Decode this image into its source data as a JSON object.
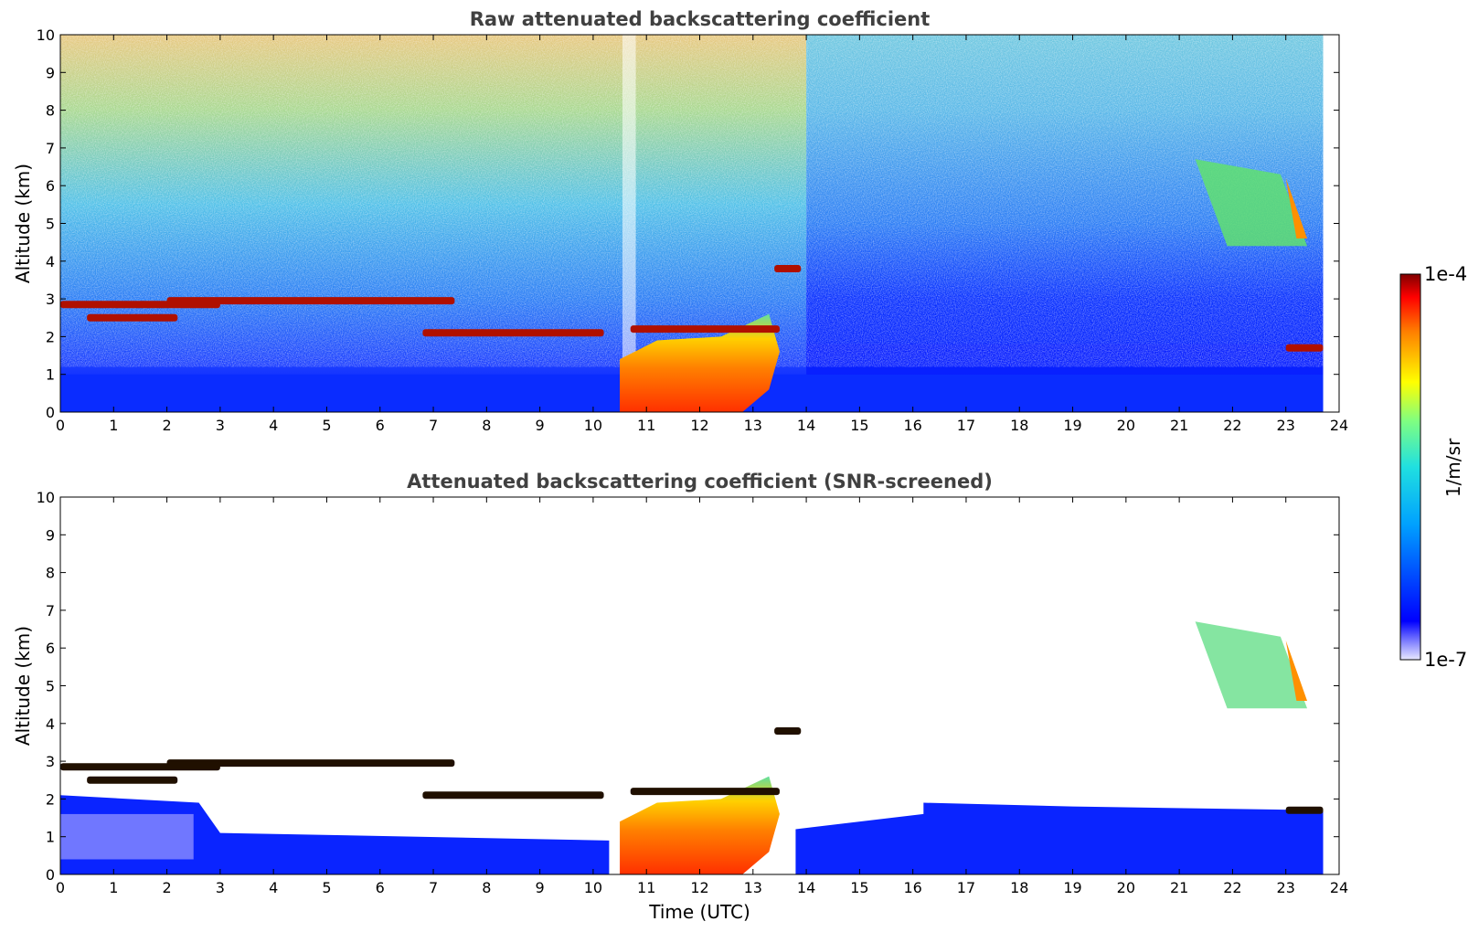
{
  "chart_data": [
    {
      "type": "heatmap",
      "title": "Raw attenuated backscattering coefficient",
      "xlabel": "",
      "ylabel": "Altitude (km)",
      "xlim": [
        0,
        24
      ],
      "ylim": [
        0,
        10
      ],
      "xticks": [
        "0",
        "1",
        "2",
        "3",
        "4",
        "5",
        "6",
        "7",
        "8",
        "9",
        "10",
        "11",
        "12",
        "13",
        "14",
        "15",
        "16",
        "17",
        "18",
        "19",
        "20",
        "21",
        "22",
        "23",
        "24"
      ],
      "yticks": [
        "0",
        "1",
        "2",
        "3",
        "4",
        "5",
        "6",
        "7",
        "8",
        "9",
        "10"
      ],
      "data_end_time": 23.7,
      "layers": [
        {
          "feature": "cloud layer",
          "t_start": 0.0,
          "t_end": 3.0,
          "altitude": 2.85
        },
        {
          "feature": "cloud layer",
          "t_start": 2.0,
          "t_end": 7.4,
          "altitude": 2.95
        },
        {
          "feature": "cloud layer",
          "t_start": 0.5,
          "t_end": 2.2,
          "altitude": 2.5
        },
        {
          "feature": "cloud layer",
          "t_start": 6.8,
          "t_end": 10.2,
          "altitude": 2.1
        },
        {
          "feature": "cloud layer",
          "t_start": 10.7,
          "t_end": 13.5,
          "altitude": 2.2
        },
        {
          "feature": "cloud layer",
          "t_start": 13.4,
          "t_end": 13.9,
          "altitude": 3.8
        },
        {
          "feature": "cirrus",
          "t_start": 21.3,
          "t_end": 23.4,
          "altitude": 5.2
        },
        {
          "feature": "low cloud",
          "t_start": 23.0,
          "t_end": 23.7,
          "altitude": 1.7
        },
        {
          "feature": "convective boundary layer",
          "t_start": 10.5,
          "t_end": 13.5,
          "altitude": 1.0
        }
      ]
    },
    {
      "type": "heatmap",
      "title": "Attenuated backscattering coefficient (SNR-screened)",
      "xlabel": "Time (UTC)",
      "ylabel": "Altitude (km)",
      "xlim": [
        0,
        24
      ],
      "ylim": [
        0,
        10
      ],
      "xticks": [
        "0",
        "1",
        "2",
        "3",
        "4",
        "5",
        "6",
        "7",
        "8",
        "9",
        "10",
        "11",
        "12",
        "13",
        "14",
        "15",
        "16",
        "17",
        "18",
        "19",
        "20",
        "21",
        "22",
        "23",
        "24"
      ],
      "yticks": [
        "0",
        "1",
        "2",
        "3",
        "4",
        "5",
        "6",
        "7",
        "8",
        "9",
        "10"
      ],
      "data_end_time": 23.7
    }
  ],
  "colorbar": {
    "label": "1/m/sr",
    "max_label": "1e-4",
    "min_label": "1e-7",
    "max_value": 0.0001,
    "min_value": 1e-07,
    "scale": "log",
    "colormap": "jet"
  }
}
